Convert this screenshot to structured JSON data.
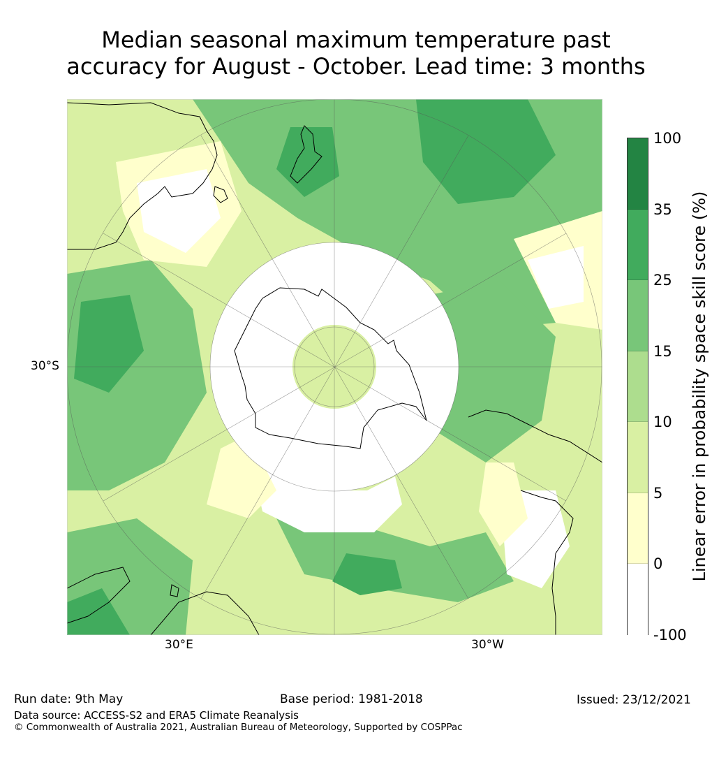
{
  "title_lines": [
    "Median seasonal maximum temperature past",
    "accuracy for August - October. Lead time: 3 months"
  ],
  "map": {
    "projection": "south-polar-stereographic",
    "lon_labels": [
      "30°E",
      "30°W"
    ],
    "lat_label": "30°S"
  },
  "colorbar": {
    "label": "Linear error in probability space skill score (%)",
    "ticks": [
      "100",
      "35",
      "25",
      "15",
      "10",
      "5",
      "0",
      "-100"
    ],
    "bins": [
      {
        "range": "35 to 100",
        "color": "#238443"
      },
      {
        "range": "25 to 35",
        "color": "#41ab5d"
      },
      {
        "range": "15 to 25",
        "color": "#78c679"
      },
      {
        "range": "10 to 15",
        "color": "#addd8e"
      },
      {
        "range": "5 to 10",
        "color": "#d9f0a3"
      },
      {
        "range": "0 to 5",
        "color": "#ffffcc"
      },
      {
        "range": "-100 to 0",
        "color": "#ffffff"
      }
    ]
  },
  "footer": {
    "run_date": "Run date: 9th May",
    "base_period": "Base period: 1981-2018",
    "issued": "Issued: 23/12/2021",
    "data_source": "Data source: ACCESS-S2 and ERA5 Climate Reanalysis",
    "copyright": "© Commonwealth of Australia 2021, Australian Bureau of Meteorology, Supported by COSPPac"
  }
}
